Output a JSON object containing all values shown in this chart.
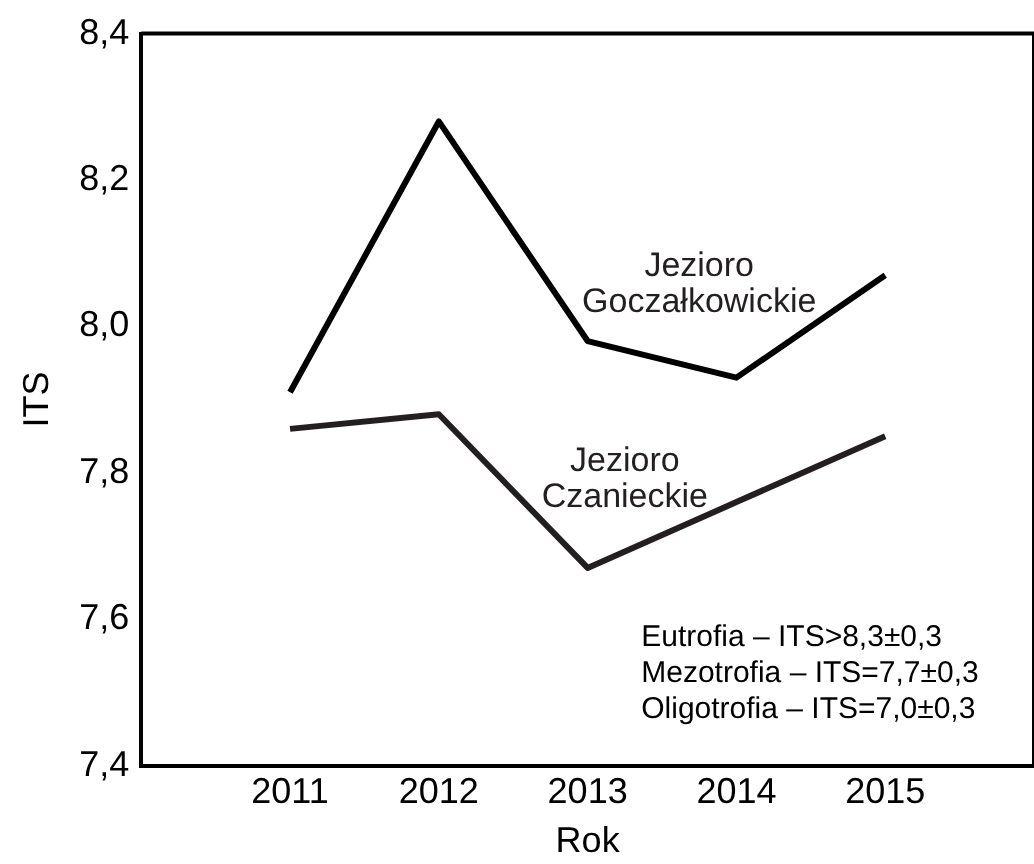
{
  "chart_data": {
    "type": "line",
    "xlabel": "Rok",
    "ylabel": "ITS",
    "x": [
      2011,
      2012,
      2013,
      2014,
      2015
    ],
    "series": [
      {
        "name": "Jezioro Goczałkowickie",
        "color": "#000000",
        "values": [
          7.91,
          8.28,
          7.98,
          7.93,
          8.07
        ]
      },
      {
        "name": "Jezioro Czanieckie",
        "color": "#231f20",
        "values": [
          7.86,
          7.88,
          7.67,
          7.76,
          7.85
        ]
      }
    ],
    "xlim": [
      2010,
      2016
    ],
    "xticks": [
      2011,
      2012,
      2013,
      2014,
      2015
    ],
    "ylim": [
      7.4,
      8.4
    ],
    "yticks": [
      {
        "value": 7.4,
        "label": "7,4"
      },
      {
        "value": 7.6,
        "label": "7,6"
      },
      {
        "value": 7.8,
        "label": "7,8"
      },
      {
        "value": 8.0,
        "label": "8,0"
      },
      {
        "value": 8.2,
        "label": "8,2"
      },
      {
        "value": 8.4,
        "label": "8,4"
      }
    ],
    "grid": false,
    "legend": false,
    "marker": "none",
    "line_style": "solid",
    "annotations": [
      "Eutrofia – ITS>8,3±0,3",
      "Mezotrofia – ITS=7,7±0,3",
      "Oligotrofia – ITS=7,0±0,3"
    ]
  }
}
